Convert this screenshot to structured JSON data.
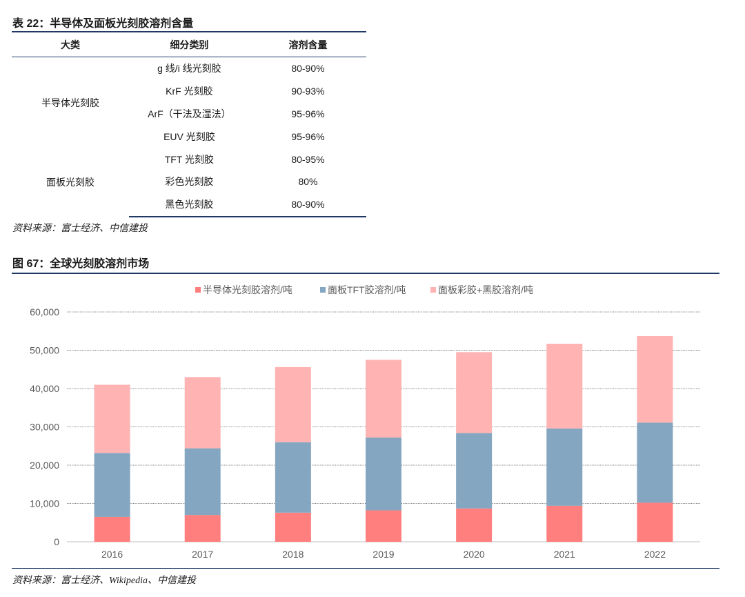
{
  "table": {
    "title": "表 22：半导体及面板光刻胶溶剂含量",
    "headers": [
      "大类",
      "细分类别",
      "溶剂含量"
    ],
    "groups": [
      {
        "category": "半导体光刻胶",
        "rows": [
          {
            "sub": "g 线/i 线光刻胶",
            "content": "80-90%"
          },
          {
            "sub": "KrF 光刻胶",
            "content": "90-93%"
          },
          {
            "sub": "ArF（干法及湿法）",
            "content": "95-96%"
          },
          {
            "sub": "EUV 光刻胶",
            "content": "95-96%"
          }
        ]
      },
      {
        "category": "面板光刻胶",
        "rows": [
          {
            "sub": "TFT 光刻胶",
            "content": "80-95%"
          },
          {
            "sub": "彩色光刻胶",
            "content": "80%"
          },
          {
            "sub": "黑色光刻胶",
            "content": "80-90%"
          }
        ]
      }
    ],
    "source": "资料来源：富士经济、中信建投"
  },
  "figure": {
    "title": "图 67：全球光刻胶溶剂市场",
    "source": "资料来源：富士经济、Wikipedia、中信建投"
  },
  "colors": {
    "semi": "#ff7f7f",
    "tft": "#84a6c0",
    "color_black": "#ffb3b3",
    "rule": "#1f3864"
  },
  "chart_data": {
    "type": "bar",
    "stacked": true,
    "categories": [
      "2016",
      "2017",
      "2018",
      "2019",
      "2020",
      "2021",
      "2022"
    ],
    "series": [
      {
        "name": "半导体光刻胶溶剂/吨",
        "values": [
          6500,
          7000,
          7600,
          8200,
          8700,
          9400,
          10200
        ]
      },
      {
        "name": "面板TFT胶溶剂/吨",
        "values": [
          16700,
          17400,
          18400,
          19000,
          19700,
          20200,
          20900
        ]
      },
      {
        "name": "面板彩胶+黑胶溶剂/吨",
        "values": [
          17800,
          18600,
          19600,
          20300,
          21100,
          22100,
          22600
        ]
      }
    ],
    "yticks": [
      "0",
      "10,000",
      "20,000",
      "30,000",
      "40,000",
      "50,000",
      "60,000"
    ],
    "ylim": [
      0,
      60000
    ],
    "grid": true,
    "legend": "top"
  }
}
